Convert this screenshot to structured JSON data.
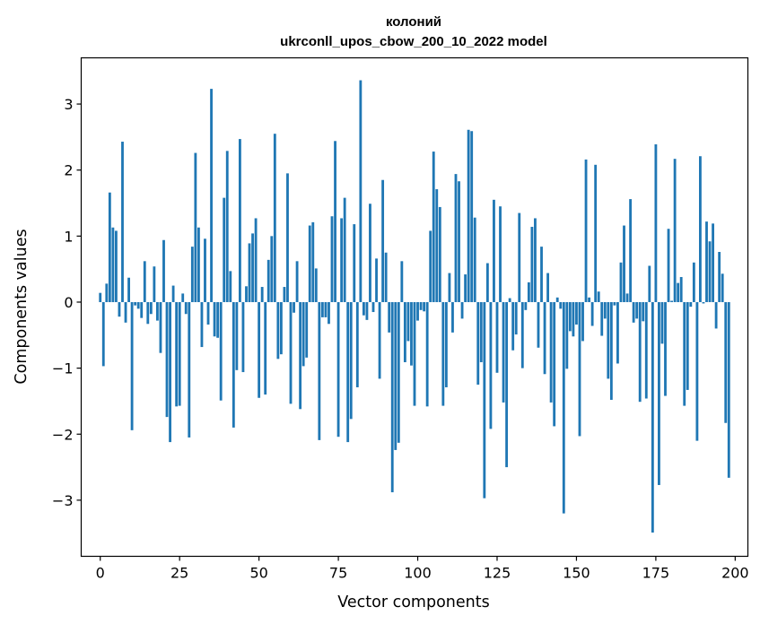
{
  "chart_data": {
    "type": "bar",
    "title": "колоний",
    "subtitle": "ukrconll_upos_cbow_200_10_2022 model",
    "xlabel": "Vector components",
    "ylabel": "Components values",
    "xlim": [
      -6,
      204
    ],
    "ylim": [
      -3.85,
      3.7
    ],
    "xticks": [
      0,
      25,
      50,
      75,
      100,
      125,
      150,
      175,
      200
    ],
    "yticks": [
      -3,
      -2,
      -1,
      0,
      1,
      2,
      3
    ],
    "xtick_labels": [
      "0",
      "25",
      "50",
      "75",
      "100",
      "125",
      "150",
      "175",
      "200"
    ],
    "ytick_labels": [
      "−3",
      "−2",
      "−1",
      "0",
      "1",
      "2",
      "3"
    ],
    "grid": false,
    "bar_color": "#1f77b4",
    "values": [
      0.14,
      -0.97,
      0.28,
      1.66,
      1.13,
      1.08,
      -0.22,
      2.43,
      -0.31,
      0.37,
      -1.94,
      -0.05,
      -0.1,
      -0.24,
      0.62,
      -0.33,
      -0.18,
      0.54,
      -0.28,
      -0.77,
      0.94,
      -1.74,
      -2.12,
      0.25,
      -1.58,
      -1.57,
      0.13,
      -0.18,
      -2.05,
      0.84,
      2.26,
      1.13,
      -0.68,
      0.96,
      -0.34,
      3.23,
      -0.52,
      -0.54,
      -1.49,
      1.58,
      2.29,
      0.47,
      -1.9,
      -1.03,
      2.47,
      -1.06,
      0.24,
      0.89,
      1.04,
      1.27,
      -1.45,
      0.23,
      -1.4,
      0.64,
      1.0,
      2.55,
      -0.86,
      -0.79,
      0.23,
      1.95,
      -1.54,
      -0.16,
      0.62,
      -1.62,
      -0.97,
      -0.84,
      1.16,
      1.21,
      0.51,
      -2.09,
      -0.23,
      -0.23,
      -0.33,
      1.3,
      2.44,
      -2.04,
      1.27,
      1.58,
      -2.12,
      -1.77,
      1.18,
      -1.29,
      3.36,
      -0.2,
      -0.27,
      1.49,
      -0.15,
      0.66,
      -1.16,
      1.85,
      0.75,
      -0.46,
      -2.88,
      -2.24,
      -2.13,
      0.62,
      -0.91,
      -0.59,
      -0.96,
      -1.57,
      -0.28,
      -0.12,
      -0.14,
      -1.58,
      1.08,
      2.28,
      1.71,
      1.44,
      -1.57,
      -1.29,
      0.44,
      -0.46,
      1.94,
      1.83,
      -0.25,
      0.42,
      2.61,
      2.59,
      1.28,
      -1.25,
      -0.91,
      -2.97,
      0.59,
      -1.92,
      1.55,
      -1.07,
      1.45,
      -1.52,
      -2.5,
      0.06,
      -0.73,
      -0.49,
      1.35,
      -1.0,
      -0.12,
      0.3,
      1.14,
      1.27,
      -0.69,
      0.84,
      -1.09,
      0.44,
      -1.52,
      -1.88,
      0.07,
      -0.1,
      -3.2,
      -1.01,
      -0.44,
      -0.52,
      -0.34,
      -2.03,
      -0.59,
      2.16,
      0.07,
      -0.36,
      2.08,
      0.16,
      -0.51,
      -0.25,
      -1.16,
      -1.48,
      -0.05,
      -0.93,
      0.6,
      1.16,
      0.13,
      1.56,
      -0.31,
      -0.25,
      -1.51,
      -0.29,
      -1.46,
      0.55,
      -3.49,
      2.39,
      -2.77,
      -0.63,
      -1.42,
      1.11,
      0.02,
      2.17,
      0.29,
      0.38,
      -1.57,
      -1.33,
      -0.07,
      0.6,
      -2.1,
      2.21,
      -0.02,
      1.22,
      0.92,
      1.19,
      -0.4,
      0.76,
      0.43,
      -1.83,
      -2.66,
      0.0
    ]
  }
}
